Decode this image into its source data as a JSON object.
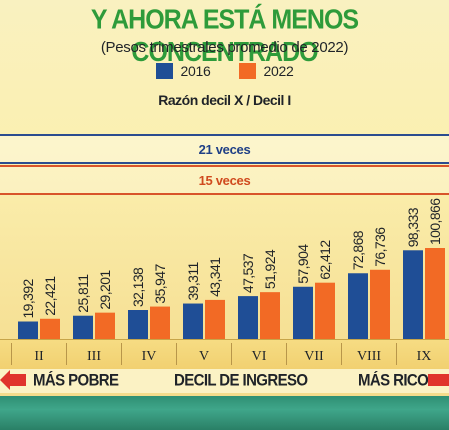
{
  "header": {
    "title": "Y AHORA ESTÁ MENOS CONCENTRADO",
    "subtitle": "(Pesos trimestrales promedio de 2022)",
    "ratio_title": "Razón decil X / Decil I"
  },
  "legend": [
    {
      "label": "2016",
      "color": "#1f4e96"
    },
    {
      "label": "2022",
      "color": "#f26a25"
    }
  ],
  "bands": {
    "blue": "21 veces",
    "red": "15 veces"
  },
  "footer": {
    "left": "MÁS POBRE",
    "middle": "DECIL DE INGRESO",
    "right": "MÁS RICO"
  },
  "colors": {
    "title_green": "#2e9b3a",
    "band_blue": "#2b4c8f",
    "band_red": "#d8542a",
    "arrow_red": "#e0332c"
  },
  "chart_data": {
    "type": "bar",
    "xlabel": "DECIL DE INGRESO",
    "categories": [
      "II",
      "III",
      "IV",
      "V",
      "VI",
      "VII",
      "VIII",
      "IX"
    ],
    "series": [
      {
        "name": "2016",
        "color": "#1f4e96",
        "values": [
          19.392,
          25.811,
          32.138,
          39.311,
          47.537,
          57.904,
          72.868,
          98.333
        ]
      },
      {
        "name": "2022",
        "color": "#f26a25",
        "values": [
          22.421,
          29.201,
          35.947,
          43.341,
          51.924,
          62.412,
          76.736,
          100.866
        ]
      }
    ],
    "labels": {
      "2016": [
        "19,392",
        "25,811",
        "32,138",
        "39,311",
        "47,537",
        "57,904",
        "72,868",
        "98,333"
      ],
      "2022": [
        "22,421",
        "29,201",
        "35,947",
        "43,341",
        "51,924",
        "62,412",
        "76,736",
        "100,866"
      ]
    },
    "ylim": [
      0,
      100.866
    ]
  }
}
